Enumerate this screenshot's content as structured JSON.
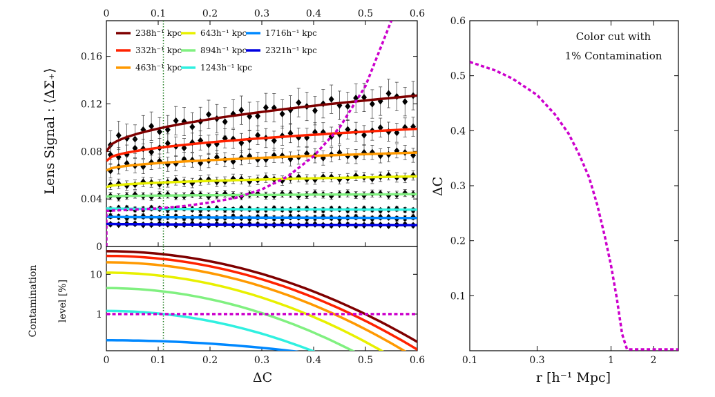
{
  "chart_data": [
    {
      "type": "line",
      "panel": "top-left",
      "ylabel": "Lens Signal : ⟨ΔΣ₊⟩",
      "xlim": [
        0,
        0.6
      ],
      "ylim": [
        0,
        0.19
      ],
      "x_ticks": [
        "0",
        "0.1",
        "0.2",
        "0.3",
        "0.4",
        "0.5",
        "0.6"
      ],
      "y_ticks": [
        "0",
        "0.04",
        "0.08",
        "0.12",
        "0.16"
      ],
      "y_tick_values": [
        0,
        0.04,
        0.08,
        0.12,
        0.16
      ],
      "vline_x": 0.11,
      "legend": {
        "placement": "top-left",
        "entries": [
          {
            "label": "238h⁻¹ kpc",
            "color": "#7f0000"
          },
          {
            "label": "332h⁻¹ kpc",
            "color": "#ff2200"
          },
          {
            "label": "463h⁻¹ kpc",
            "color": "#ff9900"
          },
          {
            "label": "643h⁻¹ kpc",
            "color": "#e8f000"
          },
          {
            "label": "894h⁻¹ kpc",
            "color": "#80f080"
          },
          {
            "label": "1243h⁻¹ kpc",
            "color": "#30f0e0"
          },
          {
            "label": "1716h⁻¹ kpc",
            "color": "#0088ff"
          },
          {
            "label": "2321h⁻¹ kpc",
            "color": "#0000e0"
          }
        ]
      },
      "series": [
        {
          "name": "238h⁻¹ kpc",
          "color": "#7f0000",
          "start": 0.08,
          "end": 0.127,
          "err": 0.012
        },
        {
          "name": "332h⁻¹ kpc",
          "color": "#ff2200",
          "start": 0.072,
          "end": 0.099,
          "err": 0.008
        },
        {
          "name": "463h⁻¹ kpc",
          "color": "#ff9900",
          "start": 0.064,
          "end": 0.079,
          "err": 0.006
        },
        {
          "name": "643h⁻¹ kpc",
          "color": "#e8f000",
          "start": 0.05,
          "end": 0.059,
          "err": 0.004
        },
        {
          "name": "894h⁻¹ kpc",
          "color": "#80f080",
          "start": 0.042,
          "end": 0.044,
          "err": 0.003
        },
        {
          "name": "1243h⁻¹ kpc",
          "color": "#30f0e0",
          "start": 0.032,
          "end": 0.031,
          "err": 0.002
        },
        {
          "name": "1716h⁻¹ kpc",
          "color": "#0088ff",
          "start": 0.025,
          "end": 0.024,
          "err": 0.002
        },
        {
          "name": "2321h⁻¹ kpc",
          "color": "#0000e0",
          "start": 0.019,
          "end": 0.018,
          "err": 0.0015
        }
      ],
      "dashed_curve": {
        "color": "#cc00cc",
        "x": [
          0,
          0.05,
          0.1,
          0.15,
          0.2,
          0.25,
          0.3,
          0.35,
          0.4,
          0.45,
          0.5,
          0.55
        ],
        "y": [
          0.03,
          0.031,
          0.032,
          0.034,
          0.037,
          0.041,
          0.048,
          0.059,
          0.076,
          0.1,
          0.135,
          0.19
        ]
      }
    },
    {
      "type": "line",
      "panel": "bottom-left",
      "xlabel": "ΔC",
      "ylabel_lines": [
        "Contamination",
        "level [%]"
      ],
      "xlim": [
        0,
        0.6
      ],
      "yscale": "log",
      "ylim": [
        0.12,
        50
      ],
      "x_ticks": [
        "0",
        "0.1",
        "0.2",
        "0.3",
        "0.4",
        "0.5",
        "0.6"
      ],
      "y_ticks": [
        "10",
        "1"
      ],
      "y_tick_values": [
        10,
        1
      ],
      "hline_y": 1,
      "series": [
        {
          "name": "238h⁻¹ kpc",
          "color": "#7f0000",
          "y0": 38,
          "x_at_0_2": 0.6
        },
        {
          "name": "332h⁻¹ kpc",
          "color": "#ff2200",
          "y0": 29,
          "x_at_0_2": 0.575
        },
        {
          "name": "463h⁻¹ kpc",
          "color": "#ff9900",
          "y0": 20,
          "x_at_0_2": 0.545
        },
        {
          "name": "643h⁻¹ kpc",
          "color": "#e8f000",
          "y0": 11,
          "x_at_0_2": 0.5
        },
        {
          "name": "894h⁻¹ kpc",
          "color": "#80f080",
          "y0": 4.5,
          "x_at_0_2": 0.44
        },
        {
          "name": "1243h⁻¹ kpc",
          "color": "#30f0e0",
          "y0": 1.2,
          "x_at_0_2": 0.35
        },
        {
          "name": "1716h⁻¹ kpc",
          "color": "#0088ff",
          "y0": 0.22,
          "x_at_0_2": 0.14
        }
      ]
    },
    {
      "type": "line",
      "panel": "right",
      "xlabel": "r [h⁻¹ Mpc]",
      "ylabel": "ΔC",
      "xscale": "log",
      "xlim": [
        0.1,
        3.0
      ],
      "ylim": [
        0,
        0.6
      ],
      "x_ticks": [
        "0.1",
        "0.3",
        "1",
        "2"
      ],
      "x_tick_values": [
        0.1,
        0.3,
        1,
        2
      ],
      "y_ticks": [
        "0.1",
        "0.2",
        "0.3",
        "0.4",
        "0.5",
        "0.6"
      ],
      "y_tick_values": [
        0.1,
        0.2,
        0.3,
        0.4,
        0.5,
        0.6
      ],
      "annotation": [
        "Color cut with",
        "1% Contamination"
      ],
      "series": [
        {
          "name": "1% contamination cut",
          "color": "#cc00cc",
          "x": [
            0.1,
            0.15,
            0.2,
            0.3,
            0.4,
            0.5,
            0.6,
            0.7,
            0.8,
            0.9,
            1.0,
            1.1,
            1.2,
            1.3,
            1.4,
            2.0,
            3.0
          ],
          "y": [
            0.525,
            0.51,
            0.495,
            0.465,
            0.43,
            0.395,
            0.355,
            0.315,
            0.265,
            0.21,
            0.155,
            0.095,
            0.03,
            0.0,
            0.0,
            0.0,
            0.0
          ]
        }
      ]
    }
  ]
}
